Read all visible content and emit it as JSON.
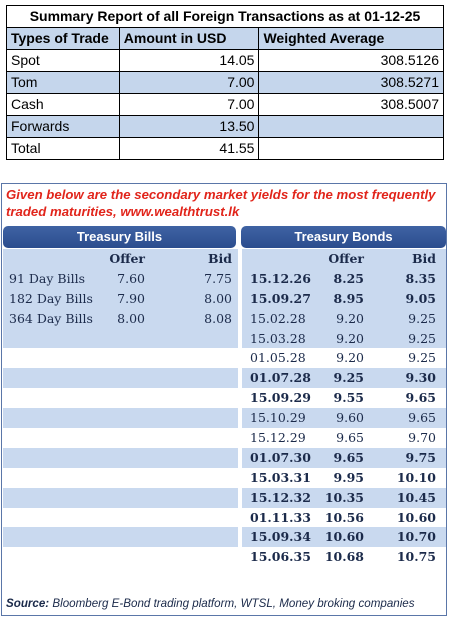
{
  "summary": {
    "title": "Summary Report of all Foreign Transactions as at 01-12-25",
    "headers": [
      "Types of Trade",
      "Amount in USD",
      "Weighted Average"
    ],
    "rows": [
      {
        "type": "Spot",
        "amount": "14.05",
        "avg": "308.5126"
      },
      {
        "type": "Tom",
        "amount": "7.00",
        "avg": "308.5271"
      },
      {
        "type": "Cash",
        "amount": "7.00",
        "avg": "308.5007"
      },
      {
        "type": "Forwards",
        "amount": "13.50",
        "avg": ""
      },
      {
        "type": "Total",
        "amount": "41.55",
        "avg": ""
      }
    ]
  },
  "yields": {
    "intro": "Given below are the secondary market yields for the most frequently traded maturities, www.wealthtrust.lk",
    "bills_header": "Treasury Bills",
    "bonds_header": "Treasury Bonds",
    "offer_label": "Offer",
    "bid_label": "Bid",
    "bills": [
      {
        "name": "91 Day Bills",
        "offer": "7.60",
        "bid": "7.75"
      },
      {
        "name": "182 Day Bills",
        "offer": "7.90",
        "bid": "8.00"
      },
      {
        "name": "364 Day Bills",
        "offer": "8.00",
        "bid": "8.08"
      }
    ],
    "bonds": [
      {
        "maturity": "15.12.26",
        "offer": "8.25",
        "bid": "8.35",
        "bold": true
      },
      {
        "maturity": "15.09.27",
        "offer": "8.95",
        "bid": "9.05",
        "bold": true
      },
      {
        "maturity": "15.02.28",
        "offer": "9.20",
        "bid": "9.25",
        "bold": false
      },
      {
        "maturity": "15.03.28",
        "offer": "9.20",
        "bid": "9.25",
        "bold": false
      },
      {
        "maturity": "01.05.28",
        "offer": "9.20",
        "bid": "9.25",
        "bold": false
      },
      {
        "maturity": "01.07.28",
        "offer": "9.25",
        "bid": "9.30",
        "bold": true
      },
      {
        "maturity": "15.09.29",
        "offer": "9.55",
        "bid": "9.65",
        "bold": true
      },
      {
        "maturity": "15.10.29",
        "offer": "9.60",
        "bid": "9.65",
        "bold": false
      },
      {
        "maturity": "15.12.29",
        "offer": "9.65",
        "bid": "9.70",
        "bold": false
      },
      {
        "maturity": "01.07.30",
        "offer": "9.65",
        "bid": "9.75",
        "bold": true
      },
      {
        "maturity": "15.03.31",
        "offer": "9.95",
        "bid": "10.10",
        "bold": true
      },
      {
        "maturity": "15.12.32",
        "offer": "10.35",
        "bid": "10.45",
        "bold": true
      },
      {
        "maturity": "01.11.33",
        "offer": "10.56",
        "bid": "10.60",
        "bold": true
      },
      {
        "maturity": "15.09.34",
        "offer": "10.60",
        "bid": "10.70",
        "bold": true
      },
      {
        "maturity": "15.06.35",
        "offer": "10.68",
        "bid": "10.75",
        "bold": true
      }
    ],
    "source_label": "Source:",
    "source_text": " Bloomberg E-Bond trading platform, WTSL, Money broking companies"
  }
}
